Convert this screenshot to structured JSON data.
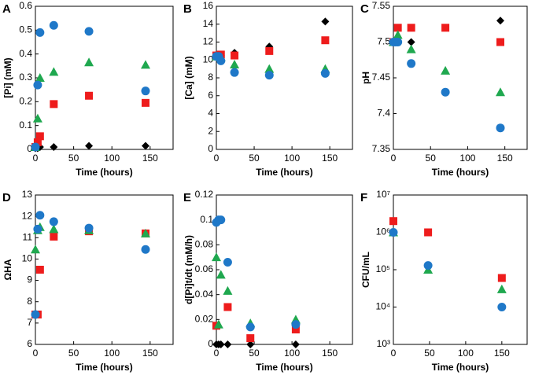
{
  "chart_data": [
    {
      "type": "scatter",
      "label": "A",
      "xlabel": "Time (hours)",
      "ylabel": "[Pi] (mM)",
      "x": [
        0,
        3,
        6,
        24,
        70,
        144
      ],
      "xlim": [
        0,
        180
      ],
      "xticks": [
        0,
        50,
        100,
        150
      ],
      "ylim": [
        0,
        0.6
      ],
      "yticks": [
        0,
        0.1,
        0.2,
        0.3,
        0.4,
        0.5,
        0.6
      ],
      "series": [
        {
          "color": "#000000",
          "marker": "diamond",
          "values": [
            0.005,
            0.005,
            0.01,
            0.01,
            0.015,
            0.015
          ]
        },
        {
          "color": "#ee1c1c",
          "marker": "square",
          "values": [
            0.01,
            0.03,
            0.055,
            0.19,
            0.225,
            0.195
          ]
        },
        {
          "color": "#1fa84f",
          "marker": "triangle",
          "values": [
            0.01,
            0.13,
            0.3,
            0.325,
            0.365,
            0.355
          ]
        },
        {
          "color": "#1f78c8",
          "marker": "circle",
          "values": [
            0.01,
            0.27,
            0.49,
            0.52,
            0.495,
            0.245
          ]
        }
      ]
    },
    {
      "type": "scatter",
      "label": "B",
      "xlabel": "Time (hours)",
      "ylabel": "[Ca] (mM)",
      "x": [
        0,
        3,
        6,
        24,
        70,
        144
      ],
      "xlim": [
        0,
        180
      ],
      "xticks": [
        0,
        50,
        100,
        150
      ],
      "ylim": [
        0,
        16
      ],
      "yticks": [
        0,
        2,
        4,
        6,
        8,
        10,
        12,
        14,
        16
      ],
      "series": [
        {
          "color": "#000000",
          "marker": "diamond",
          "values": [
            10.5,
            10.5,
            10.5,
            10.8,
            11.5,
            14.3
          ]
        },
        {
          "color": "#ee1c1c",
          "marker": "square",
          "values": [
            10.5,
            10.5,
            10.6,
            10.5,
            11,
            12.2
          ]
        },
        {
          "color": "#1fa84f",
          "marker": "triangle",
          "values": [
            10.4,
            10.4,
            10.3,
            9.5,
            9,
            9
          ]
        },
        {
          "color": "#1f78c8",
          "marker": "circle",
          "values": [
            10.4,
            10.4,
            9.9,
            8.6,
            8.3,
            8.5
          ]
        }
      ]
    },
    {
      "type": "scatter",
      "label": "C",
      "xlabel": "Time (hours)",
      "ylabel": "pH",
      "x": [
        0,
        3,
        6,
        24,
        70,
        144
      ],
      "xlim": [
        0,
        180
      ],
      "xticks": [
        0,
        50,
        100,
        150
      ],
      "ylim": [
        7.35,
        7.55
      ],
      "yticks": [
        7.35,
        7.4,
        7.45,
        7.5,
        7.55
      ],
      "series": [
        {
          "color": "#000000",
          "marker": "diamond",
          "values": [
            7.5,
            7.5,
            7.5,
            7.5,
            null,
            7.53
          ]
        },
        {
          "color": "#ee1c1c",
          "marker": "square",
          "values": [
            7.5,
            7.5,
            7.52,
            7.52,
            7.52,
            7.5
          ]
        },
        {
          "color": "#1fa84f",
          "marker": "triangle",
          "values": [
            7.5,
            7.5,
            7.51,
            7.49,
            7.46,
            7.43
          ]
        },
        {
          "color": "#1f78c8",
          "marker": "circle",
          "values": [
            7.5,
            7.5,
            7.5,
            7.47,
            7.43,
            7.38
          ]
        }
      ]
    },
    {
      "type": "scatter",
      "label": "D",
      "xlabel": "Time (hours)",
      "ylabel": "ΩHA",
      "x": [
        0,
        3,
        6,
        24,
        70,
        144
      ],
      "xlim": [
        0,
        180
      ],
      "xticks": [
        0,
        50,
        100,
        150
      ],
      "ylim": [
        6,
        13
      ],
      "yticks": [
        6,
        7,
        8,
        9,
        10,
        11,
        12,
        13
      ],
      "series": [
        {
          "color": "#ee1c1c",
          "marker": "square",
          "values": [
            7.4,
            7.4,
            9.5,
            11.05,
            11.3,
            11.2
          ]
        },
        {
          "color": "#1fa84f",
          "marker": "triangle",
          "values": [
            10.45,
            11.35,
            11.5,
            11.4,
            11.35,
            11.2
          ]
        },
        {
          "color": "#1f78c8",
          "marker": "circle",
          "values": [
            7.4,
            11.4,
            12.05,
            11.75,
            11.45,
            10.45
          ]
        }
      ]
    },
    {
      "type": "scatter",
      "label": "E",
      "xlabel": "Time (hours)",
      "ylabel": "d[Pi]t/dt (mM/h)",
      "x": [
        0,
        3,
        6,
        15,
        45,
        105
      ],
      "xlim": [
        0,
        180
      ],
      "xticks": [
        0,
        50,
        100,
        150
      ],
      "ylim": [
        0,
        0.12
      ],
      "yticks": [
        0,
        0.02,
        0.04,
        0.06,
        0.08,
        0.1,
        0.12
      ],
      "series": [
        {
          "color": "#000000",
          "marker": "diamond",
          "values": [
            0,
            0,
            0,
            0,
            0,
            0
          ]
        },
        {
          "color": "#ee1c1c",
          "marker": "square",
          "values": [
            0.015,
            null,
            null,
            0.03,
            0.005,
            0.012
          ]
        },
        {
          "color": "#1fa84f",
          "marker": "triangle",
          "values": [
            0.07,
            0.016,
            0.056,
            0.043,
            0.017,
            0.02
          ]
        },
        {
          "color": "#1f78c8",
          "marker": "circle",
          "values": [
            0.098,
            0.1,
            0.1,
            0.066,
            0.014,
            0.016
          ]
        }
      ]
    },
    {
      "type": "scatter",
      "label": "F",
      "xlabel": "Time (hours)",
      "ylabel": "CFU/mL",
      "log": true,
      "x": [
        0,
        48,
        150
      ],
      "xlim": [
        0,
        185
      ],
      "xticks": [
        0,
        50,
        100,
        150
      ],
      "ylim": [
        1000,
        10000000
      ],
      "yticks": [
        {
          "value": 1000,
          "label": "10³"
        },
        {
          "value": 10000,
          "label": "10⁴"
        },
        {
          "value": 100000,
          "label": "10⁵"
        },
        {
          "value": 1000000,
          "label": "10⁶"
        },
        {
          "value": 10000000,
          "label": "10⁷"
        }
      ],
      "series": [
        {
          "color": "#ee1c1c",
          "marker": "square",
          "values": [
            2000000,
            1000000,
            60000
          ]
        },
        {
          "color": "#1fa84f",
          "marker": "triangle",
          "values": [
            1000000,
            100000,
            30000
          ]
        },
        {
          "color": "#1f78c8",
          "marker": "circle",
          "values": [
            1000000,
            130000,
            10000
          ]
        }
      ]
    }
  ]
}
